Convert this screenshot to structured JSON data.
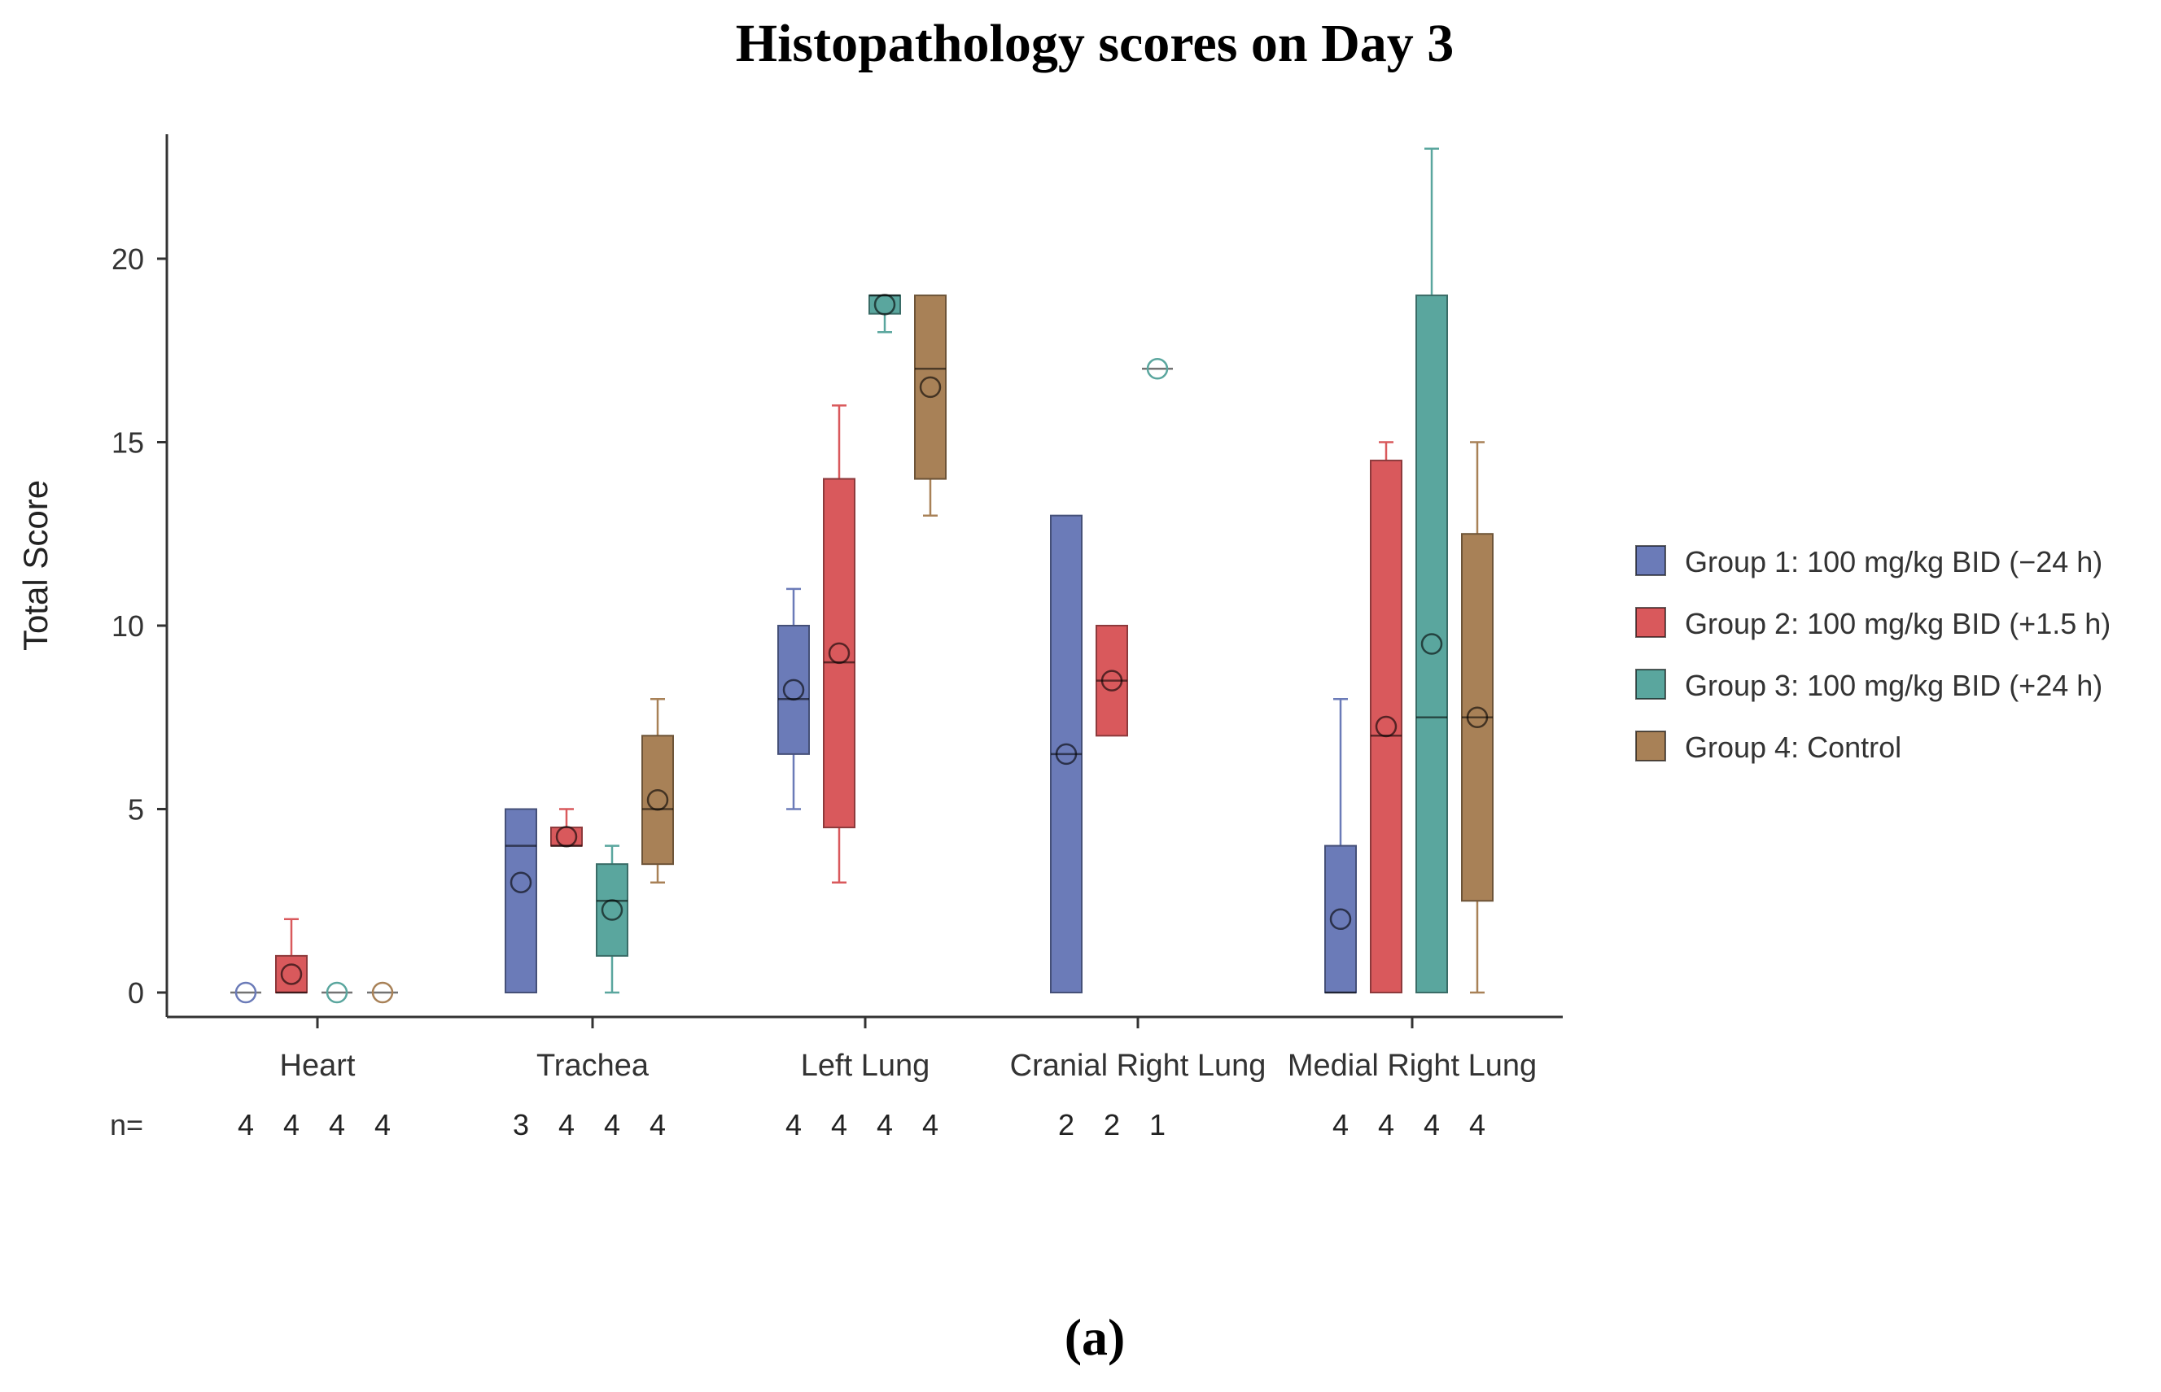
{
  "chart_data": {
    "type": "box",
    "title": "Histopathology scores on Day 3",
    "ylabel": "Total Score",
    "xlabel": "",
    "ylim": [
      0,
      24
    ],
    "yticks": [
      0,
      5,
      10,
      15,
      20
    ],
    "categories": [
      "Heart",
      "Trachea",
      "Left Lung",
      "Cranial Right Lung",
      "Medial Right Lung"
    ],
    "n_label": "n=",
    "legend_position": "right",
    "panel_label": "(a)",
    "series": [
      {
        "name": "Group 1: 100 mg/kg BID (−24 h)",
        "color": "#6b7bb8",
        "n": [
          "4",
          "3",
          "4",
          "2",
          "4"
        ],
        "boxes": [
          {
            "min": 0,
            "q1": 0,
            "median": 0,
            "q3": 0,
            "max": 0,
            "mean": 0
          },
          {
            "min": 0,
            "q1": 0,
            "median": 4,
            "q3": 5,
            "max": 5,
            "mean": 3
          },
          {
            "min": 5,
            "q1": 6.5,
            "median": 8,
            "q3": 10,
            "max": 11,
            "mean": 8.25
          },
          {
            "min": 0,
            "q1": 0,
            "median": 6.5,
            "q3": 13,
            "max": 13,
            "mean": 6.5
          },
          {
            "min": 0,
            "q1": 0,
            "median": 0,
            "q3": 4,
            "max": 8,
            "mean": 2
          }
        ]
      },
      {
        "name": "Group 2: 100 mg/kg BID (+1.5 h)",
        "color": "#d9595c",
        "n": [
          "4",
          "4",
          "4",
          "2",
          "4"
        ],
        "boxes": [
          {
            "min": 0,
            "q1": 0,
            "median": 0,
            "q3": 1,
            "max": 2,
            "mean": 0.5
          },
          {
            "min": 4,
            "q1": 4,
            "median": 4,
            "q3": 4.5,
            "max": 5,
            "mean": 4.25
          },
          {
            "min": 3,
            "q1": 4.5,
            "median": 9,
            "q3": 14,
            "max": 16,
            "mean": 9.25
          },
          {
            "min": 7,
            "q1": 7,
            "median": 8.5,
            "q3": 10,
            "max": 10,
            "mean": 8.5
          },
          {
            "min": 0,
            "q1": 0,
            "median": 7,
            "q3": 14.5,
            "max": 15,
            "mean": 7.25
          }
        ]
      },
      {
        "name": "Group 3: 100 mg/kg BID (+24 h)",
        "color": "#5aa69e",
        "n": [
          "4",
          "4",
          "4",
          "1",
          "4"
        ],
        "boxes": [
          {
            "min": 0,
            "q1": 0,
            "median": 0,
            "q3": 0,
            "max": 0,
            "mean": 0
          },
          {
            "min": 0,
            "q1": 1,
            "median": 2.5,
            "q3": 3.5,
            "max": 4,
            "mean": 2.25
          },
          {
            "min": 18,
            "q1": 18.5,
            "median": 19,
            "q3": 19,
            "max": 19,
            "mean": 18.75
          },
          {
            "min": 17,
            "q1": 17,
            "median": 17,
            "q3": 17,
            "max": 17,
            "mean": 17
          },
          {
            "min": 0,
            "q1": 0,
            "median": 7.5,
            "q3": 19,
            "max": 23,
            "mean": 9.5
          }
        ]
      },
      {
        "name": "Group 4: Control",
        "color": "#a88157",
        "n": [
          "4",
          "4",
          "4",
          "",
          "4"
        ],
        "boxes": [
          {
            "min": 0,
            "q1": 0,
            "median": 0,
            "q3": 0,
            "max": 0,
            "mean": 0
          },
          {
            "min": 3,
            "q1": 3.5,
            "median": 5,
            "q3": 7,
            "max": 8,
            "mean": 5.25
          },
          {
            "min": 13,
            "q1": 14,
            "median": 17,
            "q3": 19,
            "max": 19,
            "mean": 16.5
          },
          null,
          {
            "min": 0,
            "q1": 2.5,
            "median": 7.5,
            "q3": 12.5,
            "max": 15,
            "mean": 7.5
          }
        ]
      }
    ]
  }
}
